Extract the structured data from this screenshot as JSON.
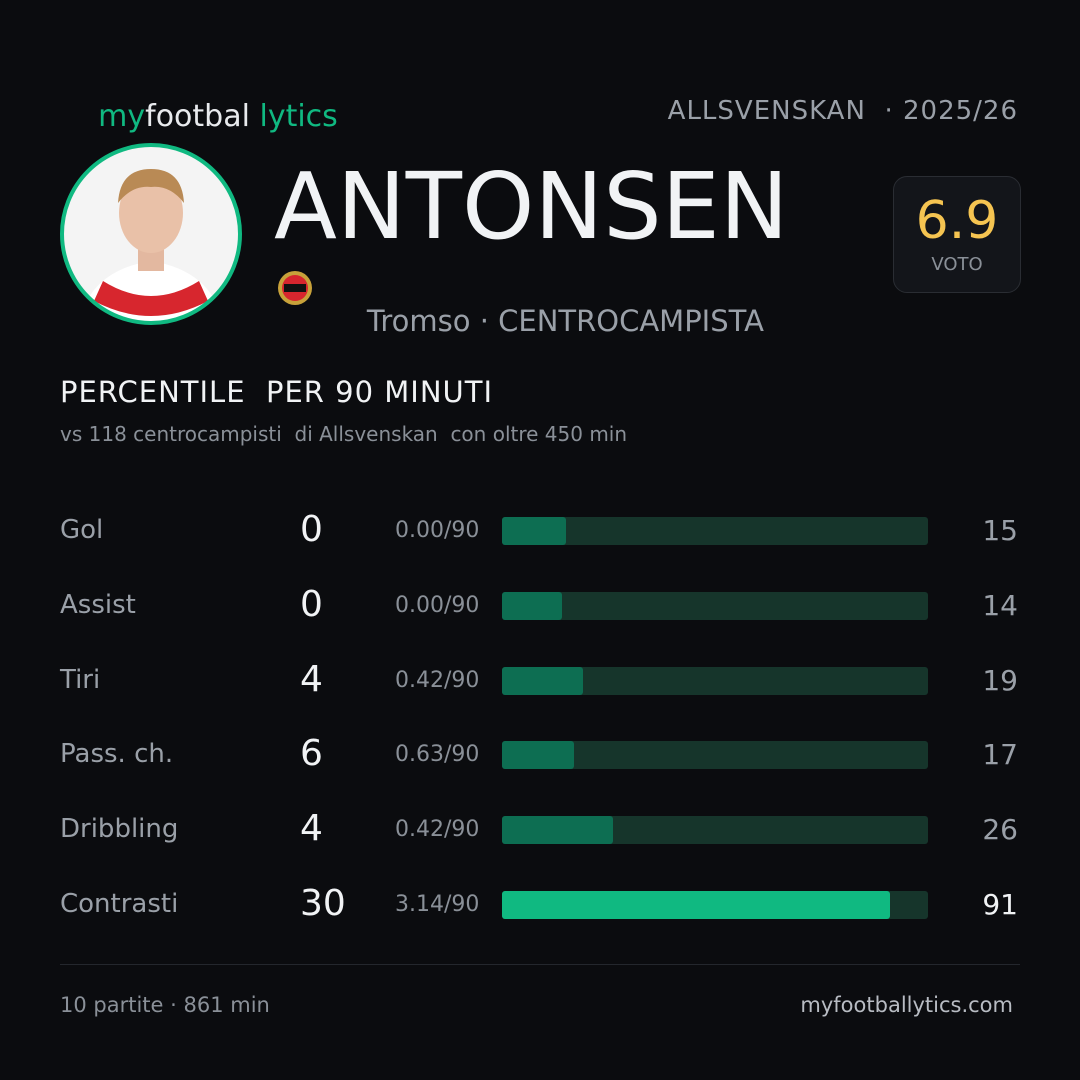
{
  "header": {
    "logo": [
      "my",
      "footbal",
      "lytics"
    ],
    "league": "ALLSVENSKAN",
    "season": "· 2025/26"
  },
  "player": {
    "name": "ANTONSEN",
    "team": "Tromso",
    "role": "· CENTROCAMPISTA",
    "rating": "6.9",
    "rating_label": "VOTO"
  },
  "section": {
    "title": "PERCENTILE  PER 90 MINUTI",
    "subtitle": "vs 118 centrocampisti  di Allsvenskan  con oltre 450 min"
  },
  "rows": [
    {
      "label": "Gol",
      "value": 0,
      "per90": "0.00/90",
      "percentile": 15,
      "color": "#0d6e52"
    },
    {
      "label": "Assist",
      "value": 0,
      "per90": "0.00/90",
      "percentile": 14,
      "color": "#0d6e52"
    },
    {
      "label": "Tiri",
      "value": 4,
      "per90": "0.42/90",
      "percentile": 19,
      "color": "#0d6e52"
    },
    {
      "label": "Pass. ch.",
      "value": 6,
      "per90": "0.63/90",
      "percentile": 17,
      "color": "#0d6e52"
    },
    {
      "label": "Dribbling",
      "value": 4,
      "per90": "0.42/90",
      "percentile": 26,
      "color": "#0d6e52"
    },
    {
      "label": "Contrasti",
      "value": 30,
      "per90": "3.14/90",
      "percentile": 91,
      "color": "#10b981"
    }
  ],
  "footer": {
    "stats": "10 partite · 861 min",
    "site": "myfootballytics.com"
  }
}
